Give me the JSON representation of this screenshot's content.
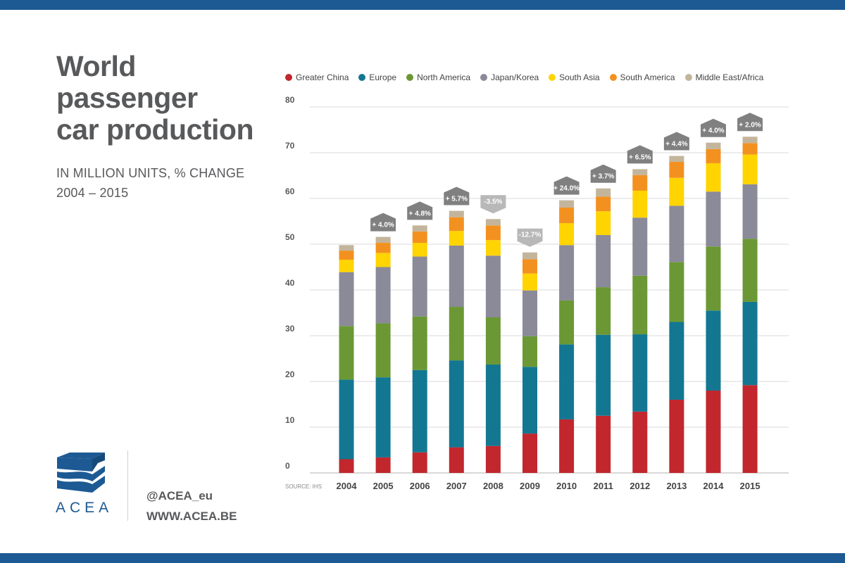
{
  "header": {
    "title_line1": "World",
    "title_line2": "passenger",
    "title_line3": "car production",
    "subtitle_line1": "IN MILLION UNITS, % CHANGE",
    "subtitle_line2": "2004 – 2015"
  },
  "footer": {
    "logo_text": "ACEA",
    "twitter": "@ACEA_eu",
    "website": "WWW.ACEA.BE"
  },
  "colors": {
    "band": "#1d5a94",
    "grid": "#d9d9d9",
    "flag_up": "#808080",
    "flag_down": "#b8b8b8"
  },
  "chart_data": {
    "type": "bar",
    "stacked": true,
    "title": "World passenger car production",
    "subtitle": "IN MILLION UNITS, % CHANGE",
    "source": "SOURCE: IHS",
    "ylim": [
      0,
      80
    ],
    "yticks": [
      0,
      10,
      20,
      30,
      40,
      50,
      60,
      70,
      80
    ],
    "grid": true,
    "legend_position": "top",
    "categories": [
      "2004",
      "2005",
      "2006",
      "2007",
      "2008",
      "2009",
      "2010",
      "2011",
      "2012",
      "2013",
      "2014",
      "2015"
    ],
    "series": [
      {
        "name": "Greater China",
        "color": "#c1272d",
        "values": [
          3.0,
          3.4,
          4.5,
          5.6,
          5.9,
          8.6,
          11.7,
          12.5,
          13.4,
          16.0,
          18.0,
          19.2
        ]
      },
      {
        "name": "Europe",
        "color": "#137792",
        "values": [
          17.4,
          17.5,
          18.0,
          19.0,
          17.8,
          14.6,
          16.4,
          17.7,
          16.9,
          17.0,
          17.5,
          18.2
        ]
      },
      {
        "name": "North America",
        "color": "#6b9834",
        "values": [
          11.7,
          11.8,
          11.7,
          11.7,
          10.3,
          6.7,
          9.6,
          10.4,
          12.8,
          13.1,
          14.0,
          13.8
        ]
      },
      {
        "name": "Japan/Korea",
        "color": "#8a8a99",
        "values": [
          11.8,
          12.3,
          13.1,
          13.4,
          13.5,
          10.0,
          12.1,
          11.4,
          12.7,
          12.3,
          12.0,
          11.9
        ]
      },
      {
        "name": "South Asia",
        "color": "#ffd400",
        "values": [
          2.7,
          3.1,
          3.0,
          3.2,
          3.4,
          3.7,
          4.8,
          5.2,
          5.9,
          6.1,
          6.2,
          6.5
        ]
      },
      {
        "name": "South America",
        "color": "#f39120",
        "values": [
          2.0,
          2.2,
          2.5,
          3.0,
          3.2,
          3.1,
          3.4,
          3.2,
          3.4,
          3.5,
          3.1,
          2.5
        ]
      },
      {
        "name": "Middle East/Africa",
        "color": "#c3b59c",
        "values": [
          1.2,
          1.3,
          1.3,
          1.4,
          1.4,
          1.5,
          1.6,
          1.8,
          1.3,
          1.3,
          1.4,
          1.4
        ]
      }
    ],
    "annotations": [
      {
        "category": "2005",
        "label": "+ 4.0%",
        "direction": "up"
      },
      {
        "category": "2006",
        "label": "+ 4.8%",
        "direction": "up"
      },
      {
        "category": "2007",
        "label": "+ 5.7%",
        "direction": "up"
      },
      {
        "category": "2008",
        "label": "-3.5%",
        "direction": "down"
      },
      {
        "category": "2009",
        "label": "-12.7%",
        "direction": "down"
      },
      {
        "category": "2010",
        "label": "+ 24.0%",
        "direction": "up"
      },
      {
        "category": "2011",
        "label": "+ 3.7%",
        "direction": "up"
      },
      {
        "category": "2012",
        "label": "+ 6.5%",
        "direction": "up"
      },
      {
        "category": "2013",
        "label": "+ 4.4%",
        "direction": "up"
      },
      {
        "category": "2014",
        "label": "+ 4.0%",
        "direction": "up"
      },
      {
        "category": "2015",
        "label": "+ 2.0%",
        "direction": "up"
      }
    ]
  }
}
